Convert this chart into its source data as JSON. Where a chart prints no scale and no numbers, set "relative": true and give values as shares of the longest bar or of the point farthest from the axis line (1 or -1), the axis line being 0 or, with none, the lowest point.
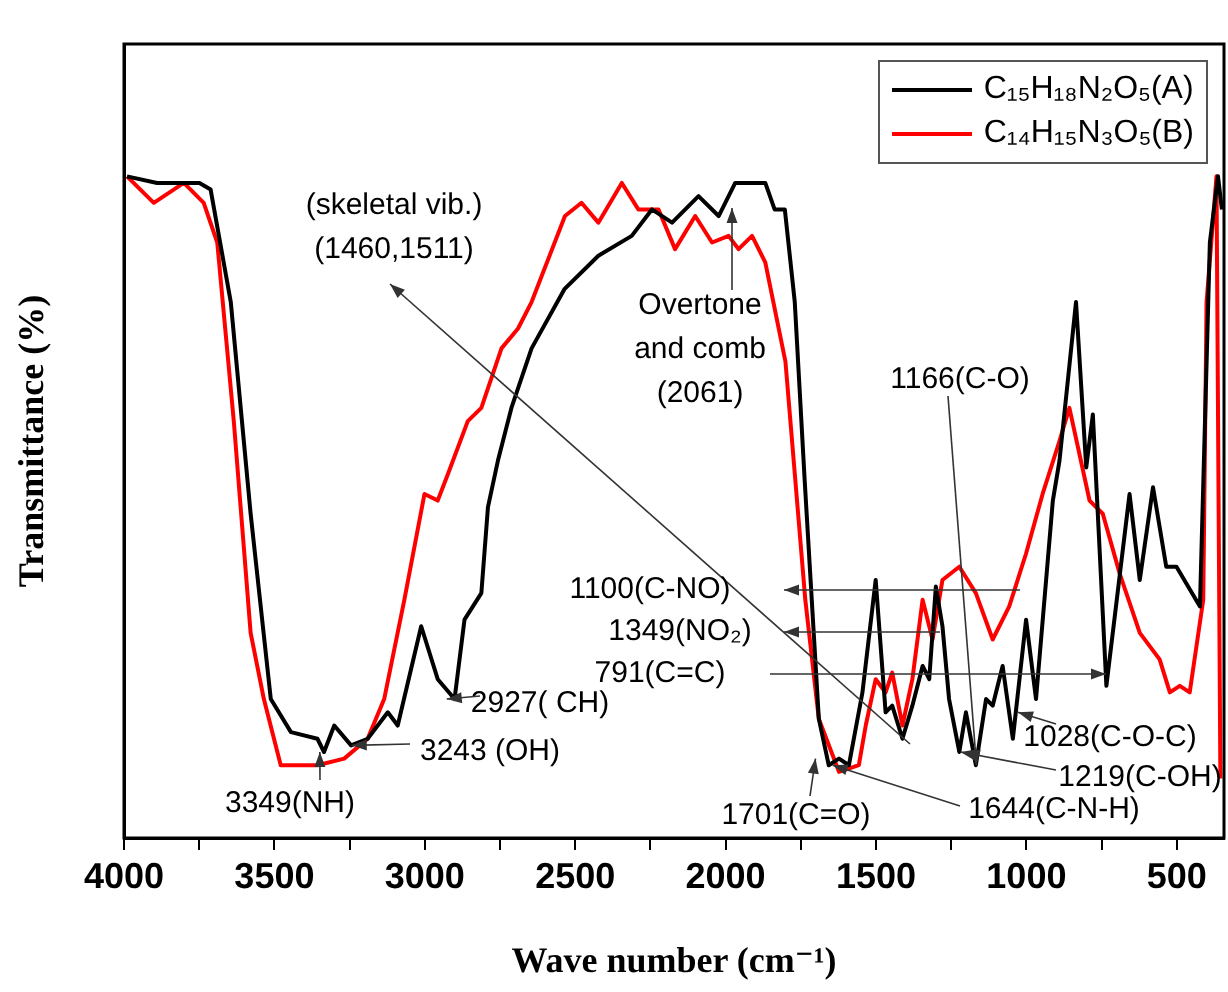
{
  "chart_data": {
    "type": "line",
    "xlabel": "Wave number (cm⁻¹)",
    "ylabel": "Transmittance (%)",
    "relative": true,
    "xlim": [
      4000,
      343
    ],
    "xticks": [
      4000,
      {
        "value": 3750,
        "label": null
      },
      3500,
      {
        "value": 3250,
        "label": null
      },
      3000,
      {
        "value": 2750,
        "label": null
      },
      2500,
      {
        "value": 2250,
        "label": null
      },
      2000,
      {
        "value": 1750,
        "label": null
      },
      1500,
      {
        "value": 1250,
        "label": null
      },
      1000,
      {
        "value": 750,
        "label": null
      },
      500
    ],
    "grid": false,
    "legend": "top right",
    "marker": "none",
    "series": [
      {
        "name": "C₁₅H₁₈N₂O₅(A)",
        "color": "#000000",
        "x": [
          3990,
          3890,
          3749,
          3712,
          3645,
          3579,
          3512,
          3445,
          3357,
          3335,
          3301,
          3245,
          3190,
          3123,
          3090,
          3012,
          2957,
          2901,
          2868,
          2812,
          2790,
          2757,
          2712,
          2645,
          2535,
          2423,
          2312,
          2245,
          2178,
          2090,
          2023,
          1968,
          1868,
          1837,
          1803,
          1770,
          1737,
          1690,
          1657,
          1623,
          1590,
          1545,
          1501,
          1468,
          1446,
          1412,
          1379,
          1345,
          1323,
          1301,
          1279,
          1257,
          1223,
          1201,
          1168,
          1134,
          1112,
          1079,
          1045,
          1001,
          968,
          912,
          890,
          835,
          801,
          779,
          734,
          657,
          623,
          579,
          535,
          501,
          423,
          390,
          363,
          350
        ],
        "values": [
          1.0,
          0.99,
          0.99,
          0.98,
          0.81,
          0.49,
          0.21,
          0.16,
          0.15,
          0.13,
          0.17,
          0.14,
          0.15,
          0.19,
          0.17,
          0.32,
          0.24,
          0.21,
          0.33,
          0.37,
          0.5,
          0.57,
          0.65,
          0.74,
          0.83,
          0.88,
          0.91,
          0.95,
          0.93,
          0.97,
          0.94,
          0.99,
          0.99,
          0.95,
          0.95,
          0.81,
          0.54,
          0.18,
          0.11,
          0.12,
          0.11,
          0.22,
          0.39,
          0.19,
          0.2,
          0.15,
          0.2,
          0.26,
          0.24,
          0.38,
          0.32,
          0.21,
          0.13,
          0.19,
          0.11,
          0.21,
          0.2,
          0.26,
          0.15,
          0.33,
          0.21,
          0.51,
          0.57,
          0.81,
          0.56,
          0.64,
          0.23,
          0.52,
          0.39,
          0.53,
          0.41,
          0.41,
          0.35,
          0.9,
          1.0,
          0.95
        ]
      },
      {
        "name": "C₁₄H₁₅N₃O₅(B)",
        "color": "#ff0000",
        "x": [
          3990,
          3901,
          3801,
          3735,
          3690,
          3635,
          3579,
          3535,
          3479,
          3357,
          3268,
          3190,
          3135,
          3068,
          3001,
          2957,
          2923,
          2857,
          2812,
          2745,
          2690,
          2645,
          2534,
          2479,
          2423,
          2345,
          2290,
          2223,
          2168,
          2101,
          2045,
          1990,
          1957,
          1912,
          1868,
          1801,
          1735,
          1690,
          1623,
          1557,
          1534,
          1501,
          1468,
          1446,
          1412,
          1379,
          1345,
          1312,
          1279,
          1223,
          1168,
          1112,
          1057,
          1001,
          946,
          890,
          857,
          790,
          746,
          690,
          623,
          557,
          523,
          490,
          457,
          412,
          401,
          368,
          355
        ],
        "values": [
          1.0,
          0.96,
          0.99,
          0.96,
          0.9,
          0.63,
          0.31,
          0.21,
          0.11,
          0.11,
          0.12,
          0.15,
          0.21,
          0.36,
          0.52,
          0.51,
          0.55,
          0.63,
          0.65,
          0.74,
          0.77,
          0.81,
          0.94,
          0.96,
          0.93,
          0.99,
          0.95,
          0.95,
          0.89,
          0.94,
          0.9,
          0.91,
          0.89,
          0.91,
          0.87,
          0.72,
          0.36,
          0.18,
          0.1,
          0.11,
          0.17,
          0.24,
          0.22,
          0.25,
          0.17,
          0.24,
          0.36,
          0.3,
          0.39,
          0.41,
          0.37,
          0.3,
          0.35,
          0.43,
          0.52,
          0.6,
          0.65,
          0.51,
          0.49,
          0.4,
          0.31,
          0.27,
          0.22,
          0.23,
          0.22,
          0.36,
          0.81,
          1.0,
          0.09
        ]
      }
    ],
    "annotations": [
      "(skeletal vib.)\n(1460,1511)",
      "Overtone\nand comb\n(2061)",
      {
        "text": "1166(C-O)",
        "x": 1166,
        "y": 0.11
      },
      "1100(C-NO)",
      "1349(NO₂)",
      "791(C=C)",
      {
        "text": "1028(C-O-C)",
        "x": 1028,
        "y": 0.19
      },
      {
        "text": "1219(C-OH)",
        "x": 1219,
        "y": 0.13
      },
      {
        "text": "1644(C-N-H)",
        "x": 1644,
        "y": 0.11
      },
      {
        "text": "1701(C=O)",
        "x": 1701,
        "y": 0.12
      },
      {
        "text": "2927( CH)",
        "x": 2927,
        "y": 0.21
      },
      {
        "text": "3243 (OH)",
        "x": 3243,
        "y": 0.14
      },
      {
        "text": "3349(NH)",
        "x": 3349,
        "y": 0.13
      }
    ]
  }
}
